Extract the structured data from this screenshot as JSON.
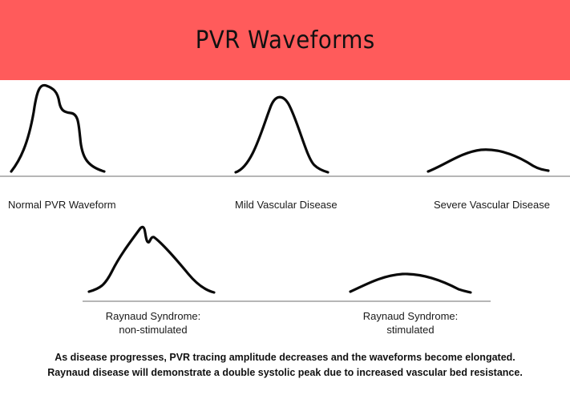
{
  "header": {
    "title": "PVR Waveforms",
    "background_color": "#ff5b5b"
  },
  "waveforms": [
    {
      "id": "normal",
      "label": "Normal PVR Waveform"
    },
    {
      "id": "mild",
      "label": "Mild Vascular Disease"
    },
    {
      "id": "severe",
      "label": "Severe Vascular Disease"
    },
    {
      "id": "raynaud-non",
      "label_line1": "Raynaud Syndrome:",
      "label_line2": "non-stimulated"
    },
    {
      "id": "raynaud-stim",
      "label_line1": "Raynaud Syndrome:",
      "label_line2": "stimulated"
    }
  ],
  "caption": {
    "line1": "As disease progresses, PVR tracing amplitude decreases and the waveforms become elongated.",
    "line2": "Raynaud disease will demonstrate a double systolic peak due to increased vascular bed resistance."
  },
  "colors": {
    "trace": "#0a0a0a",
    "baseline": "#8a8a8a"
  }
}
